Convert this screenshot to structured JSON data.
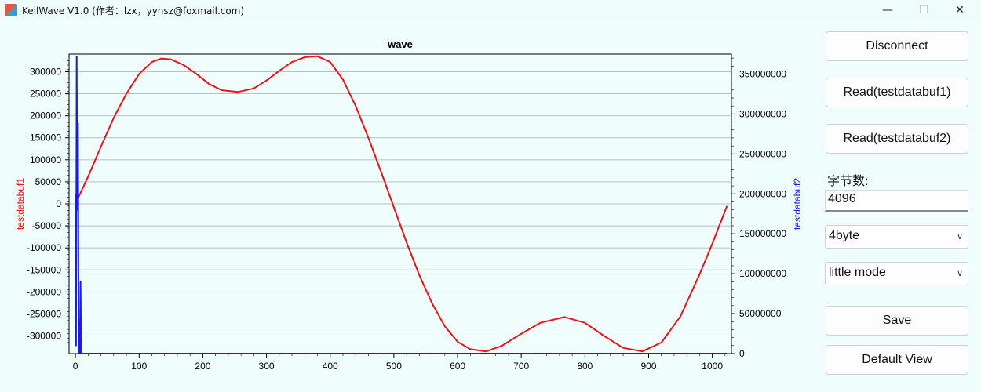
{
  "window": {
    "title": "KeilWave V1.0 (作者：lzx，yynsz@foxmail.com)"
  },
  "controls": {
    "disconnect_label": "Disconnect",
    "read1_label": "Read(testdatabuf1)",
    "read2_label": "Read(testdatabuf2)",
    "bytes_label": "字节数:",
    "bytes_value": "4096",
    "type_select": "4byte",
    "endian_select": "little mode",
    "save_label": "Save",
    "default_view_label": "Default View"
  },
  "chart_data": {
    "type": "line",
    "title": "wave",
    "xlabel": "",
    "ylabel_left": "testdatabuf1",
    "ylabel_right": "testdatabuf2",
    "xlim": [
      -10,
      1030
    ],
    "ylim_left": [
      -340000,
      340000
    ],
    "ylim_right": [
      0,
      375000000
    ],
    "x_ticks": [
      0,
      100,
      200,
      300,
      400,
      500,
      600,
      700,
      800,
      900,
      1000
    ],
    "y_left_ticks": [
      300000,
      250000,
      200000,
      150000,
      100000,
      50000,
      0,
      -50000,
      -100000,
      -150000,
      -200000,
      -250000,
      -300000
    ],
    "y_right_ticks": [
      350000000,
      300000000,
      250000000,
      200000000,
      150000000,
      100000000,
      50000000,
      0
    ],
    "grid": true,
    "series": [
      {
        "name": "testdatabuf1",
        "axis": "left",
        "color": "#e8141c",
        "x": [
          0,
          20,
          40,
          60,
          80,
          100,
          120,
          135,
          150,
          170,
          190,
          210,
          230,
          255,
          280,
          300,
          320,
          340,
          360,
          380,
          400,
          420,
          440,
          460,
          480,
          500,
          520,
          540,
          560,
          580,
          600,
          620,
          645,
          670,
          700,
          730,
          768,
          800,
          830,
          860,
          890,
          920,
          950,
          980,
          1000,
          1023
        ],
        "y": [
          0,
          62000,
          130000,
          195000,
          250000,
          295000,
          322000,
          330000,
          328000,
          315000,
          295000,
          272000,
          258000,
          254000,
          262000,
          280000,
          302000,
          322000,
          333000,
          335000,
          322000,
          282000,
          222000,
          150000,
          72000,
          -8000,
          -88000,
          -162000,
          -226000,
          -278000,
          -313000,
          -330000,
          -335000,
          -322000,
          -295000,
          -270000,
          -257000,
          -270000,
          -300000,
          -327000,
          -335000,
          -315000,
          -255000,
          -160000,
          -90000,
          -5000
        ]
      },
      {
        "name": "testdatabuf2",
        "axis": "right",
        "color": "#1c1ce0",
        "x": [
          0,
          1,
          2,
          3,
          4,
          5,
          6,
          7,
          8,
          9,
          10,
          11,
          12,
          1023
        ],
        "y": [
          200000000,
          10000000,
          372000000,
          180000000,
          290000000,
          0,
          40000000,
          0,
          90000000,
          0,
          0,
          0,
          0,
          0
        ]
      }
    ]
  }
}
